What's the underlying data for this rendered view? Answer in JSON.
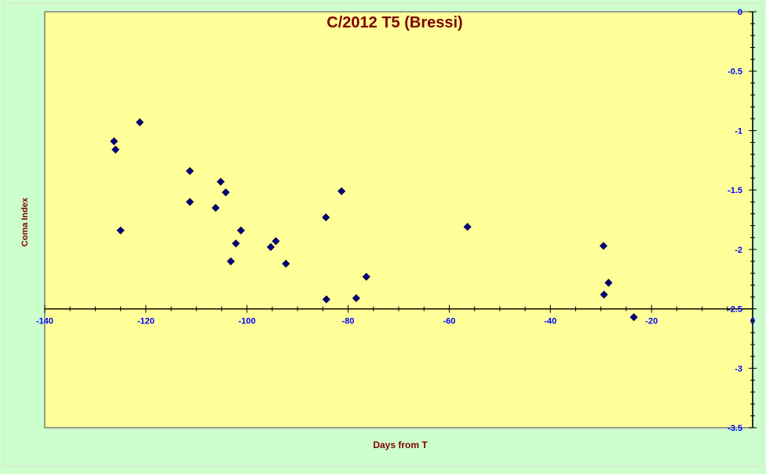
{
  "chart_data": {
    "type": "scatter",
    "title": "C/2012 T5 (Bressi)",
    "xlabel": "Days from T",
    "ylabel": "Coma Index",
    "xlim": [
      -140,
      0
    ],
    "ylim": [
      -3.5,
      0
    ],
    "x_ticks": [
      -140,
      -120,
      -100,
      -80,
      -60,
      -40,
      -20,
      0
    ],
    "y_ticks": [
      0,
      -0.5,
      -1,
      -1.5,
      -2,
      -2.5,
      -3,
      -3.5
    ],
    "x_tick_labels": [
      "-140",
      "-120",
      "-100",
      "-80",
      "-60",
      "-40",
      "-20",
      "0"
    ],
    "y_tick_labels": [
      "0",
      "-0.5",
      "-1",
      "-1.5",
      "-2",
      "-2.5",
      "-3",
      "-3.5"
    ],
    "x_axis_crosses_at": -2.5,
    "y_axis_position": "right",
    "grid": false,
    "legend": "none",
    "series": [
      {
        "marker": "diamond",
        "color": "#000080",
        "points": [
          {
            "x": -126.3,
            "y": -1.09
          },
          {
            "x": -126.0,
            "y": -1.16
          },
          {
            "x": -125.0,
            "y": -1.84
          },
          {
            "x": -121.2,
            "y": -0.93
          },
          {
            "x": -111.3,
            "y": -1.34
          },
          {
            "x": -111.3,
            "y": -1.6
          },
          {
            "x": -106.2,
            "y": -1.65
          },
          {
            "x": -105.2,
            "y": -1.43
          },
          {
            "x": -104.2,
            "y": -1.52
          },
          {
            "x": -103.2,
            "y": -2.1
          },
          {
            "x": -102.2,
            "y": -1.95
          },
          {
            "x": -101.2,
            "y": -1.84
          },
          {
            "x": -95.3,
            "y": -1.98
          },
          {
            "x": -94.3,
            "y": -1.93
          },
          {
            "x": -92.3,
            "y": -2.12
          },
          {
            "x": -84.4,
            "y": -1.73
          },
          {
            "x": -84.3,
            "y": -2.42
          },
          {
            "x": -81.3,
            "y": -1.51
          },
          {
            "x": -78.4,
            "y": -2.41
          },
          {
            "x": -76.4,
            "y": -2.23
          },
          {
            "x": -56.4,
            "y": -1.81
          },
          {
            "x": -29.5,
            "y": -1.97
          },
          {
            "x": -29.4,
            "y": -2.38
          },
          {
            "x": -28.5,
            "y": -2.28
          },
          {
            "x": -23.5,
            "y": -2.57
          }
        ]
      }
    ]
  },
  "colors": {
    "background": "#ccffcc",
    "plot_area": "#ffff99",
    "title": "#800000",
    "axis_title": "#800000",
    "tick_labels": "#0000ff",
    "marker": "#000080",
    "axis_line": "#000000"
  }
}
